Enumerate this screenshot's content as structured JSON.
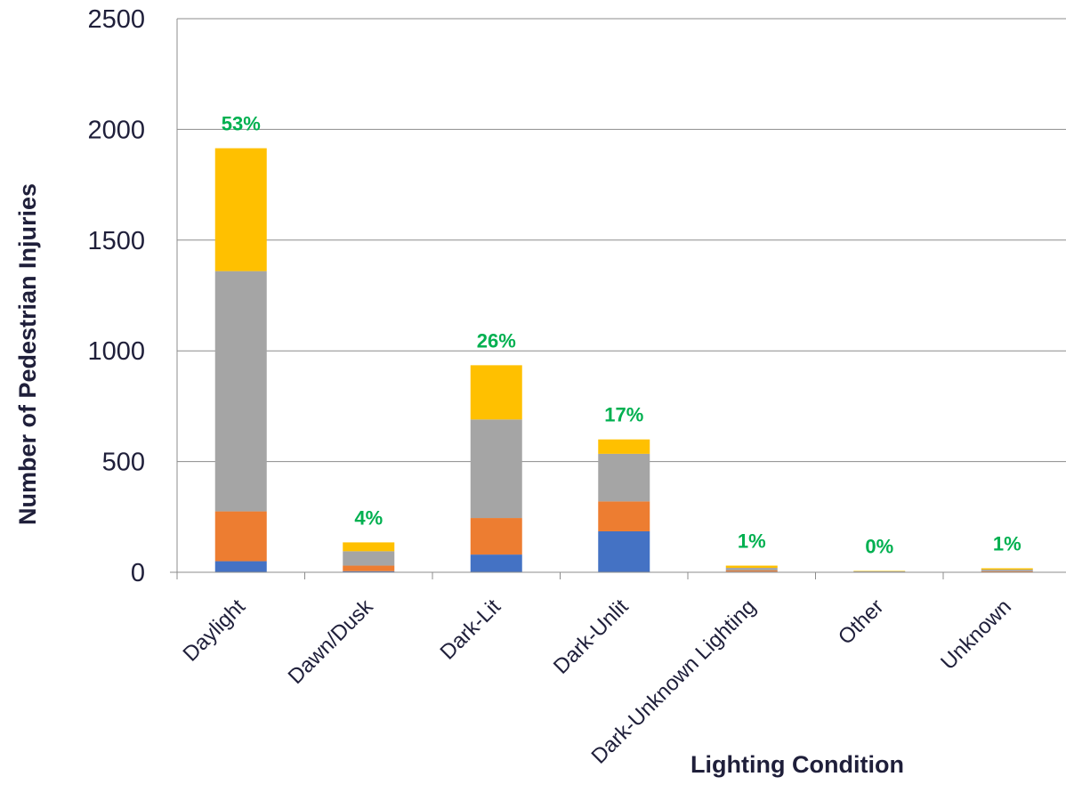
{
  "chart_data": {
    "type": "bar",
    "stacked": true,
    "xlabel": "Lighting Condition",
    "ylabel": "Number of Pedestrian Injuries",
    "ylim": [
      0,
      2500
    ],
    "yticks": [
      0,
      500,
      1000,
      1500,
      2000,
      2500
    ],
    "grid": true,
    "categories": [
      "Daylight",
      "Dawn/Dusk",
      "Dark-Lit",
      "Dark-Unlit",
      "Dark-Unknown Lighting",
      "Other",
      "Unknown"
    ],
    "series": [
      {
        "color": "#4472c4",
        "values": [
          50,
          5,
          80,
          185,
          3,
          1,
          2
        ]
      },
      {
        "color": "#ed7d31",
        "values": [
          225,
          25,
          165,
          135,
          5,
          1,
          3
        ]
      },
      {
        "color": "#a5a5a5",
        "values": [
          1085,
          65,
          445,
          215,
          12,
          2,
          7
        ]
      },
      {
        "color": "#ffc000",
        "values": [
          555,
          40,
          245,
          65,
          10,
          2,
          6
        ]
      }
    ],
    "data_labels": [
      "53%",
      "4%",
      "26%",
      "17%",
      "1%",
      "0%",
      "1%"
    ],
    "data_label_color": "#00b050",
    "legend": "none"
  }
}
